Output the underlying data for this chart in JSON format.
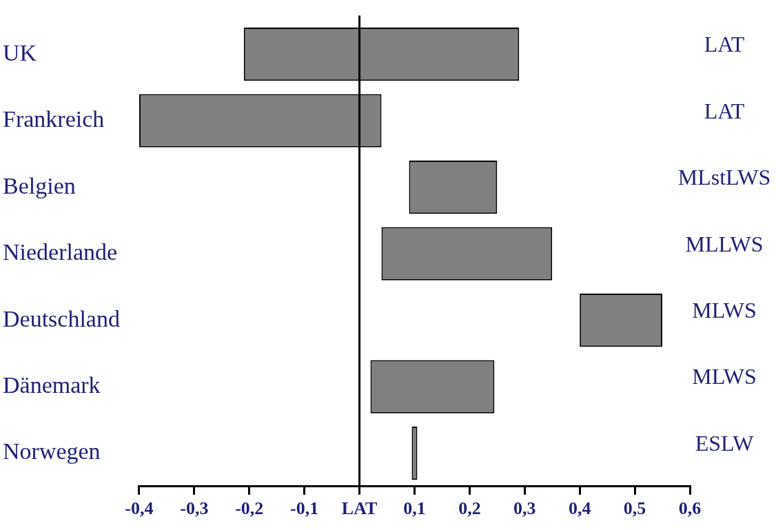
{
  "chart_data": {
    "type": "bar",
    "orientation": "horizontal",
    "categories": [
      "UK",
      "Frankreich",
      "Belgien",
      "Niederlande",
      "Deutschland",
      "Dänemark",
      "Norwegen"
    ],
    "base": [
      -0.21,
      -0.4,
      0.09,
      0.04,
      0.4,
      0.02,
      0.095
    ],
    "values": [
      0.5,
      0.44,
      0.16,
      0.31,
      0.15,
      0.225,
      0.01
    ],
    "color": "#808080",
    "xlim": [
      -0.4,
      0.6
    ],
    "xticks": [
      {
        "value": -0.4,
        "label": "-0,4"
      },
      {
        "value": -0.3,
        "label": "-0,3"
      },
      {
        "value": -0.2,
        "label": "-0,2"
      },
      {
        "value": -0.1,
        "label": "-0,1"
      },
      {
        "value": 0,
        "label": "LAT"
      },
      {
        "value": 0.1,
        "label": "0,1"
      },
      {
        "value": 0.2,
        "label": "0,2"
      },
      {
        "value": 0.3,
        "label": "0,3"
      },
      {
        "value": 0.4,
        "label": "0,4"
      },
      {
        "value": 0.5,
        "label": "0,5"
      },
      {
        "value": 0.6,
        "label": "0,6"
      }
    ],
    "ref_lines": [
      {
        "axis": "x",
        "value": 0
      }
    ],
    "annotations": [
      "LAT",
      "LAT",
      "MLstLWS",
      "MLLWS",
      "MLWS",
      "MLWS",
      "ESLW"
    ],
    "grid": false,
    "legend": false
  }
}
